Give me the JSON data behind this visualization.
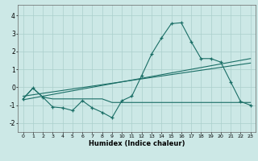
{
  "xlabel": "Humidex (Indice chaleur)",
  "xlim": [
    -0.5,
    23.5
  ],
  "ylim": [
    -2.5,
    4.6
  ],
  "xticks": [
    0,
    1,
    2,
    3,
    4,
    5,
    6,
    7,
    8,
    9,
    10,
    11,
    12,
    13,
    14,
    15,
    16,
    17,
    18,
    19,
    20,
    21,
    22,
    23
  ],
  "yticks": [
    -2,
    -1,
    0,
    1,
    2,
    3,
    4
  ],
  "bg_color": "#cce8e6",
  "line_color": "#1a6e66",
  "grid_color": "#aacfcc",
  "line1_x": [
    0,
    1,
    2,
    3,
    4,
    5,
    6,
    7,
    8,
    9,
    10,
    11,
    12,
    13,
    14,
    15,
    16,
    17,
    18,
    19,
    20,
    21,
    22,
    23
  ],
  "line1_y": [
    -0.65,
    -0.05,
    -0.55,
    -1.1,
    -1.15,
    -1.3,
    -0.75,
    -1.15,
    -1.4,
    -1.7,
    -0.75,
    -0.5,
    0.65,
    1.85,
    2.75,
    3.55,
    3.6,
    2.55,
    1.6,
    1.6,
    1.4,
    0.3,
    -0.8,
    -1.0
  ],
  "line2_x": [
    0,
    23
  ],
  "line2_y": [
    -0.7,
    1.6
  ],
  "line3_x": [
    0,
    23
  ],
  "line3_y": [
    -0.5,
    1.35
  ],
  "line4_x": [
    0,
    1,
    2,
    3,
    4,
    5,
    6,
    7,
    8,
    9,
    10,
    11,
    12,
    13,
    14,
    15,
    16,
    17,
    18,
    19,
    20,
    21,
    22,
    23
  ],
  "line4_y": [
    -0.65,
    -0.05,
    -0.55,
    -0.65,
    -0.65,
    -0.65,
    -0.65,
    -0.65,
    -0.65,
    -0.85,
    -0.85,
    -0.85,
    -0.85,
    -0.85,
    -0.85,
    -0.85,
    -0.85,
    -0.85,
    -0.85,
    -0.85,
    -0.85,
    -0.85,
    -0.85,
    -0.85
  ]
}
